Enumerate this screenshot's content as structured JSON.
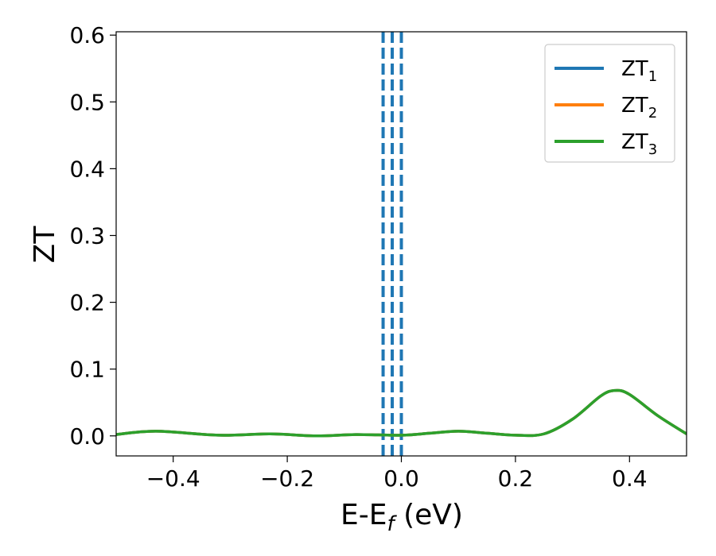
{
  "chart_data": {
    "type": "line",
    "xlabel": "E-E",
    "xlabel_sub": "f",
    "xlabel_unit": " (eV)",
    "ylabel": "ZT",
    "xlim": [
      -0.5,
      0.5
    ],
    "ylim": [
      -0.03,
      0.605
    ],
    "x_ticks": [
      -0.4,
      -0.2,
      0.0,
      0.2,
      0.4
    ],
    "x_tick_labels": [
      "−0.4",
      "−0.2",
      "0.0",
      "0.2",
      "0.4"
    ],
    "y_ticks": [
      0.0,
      0.1,
      0.2,
      0.3,
      0.4,
      0.5,
      0.6
    ],
    "y_tick_labels": [
      "0.0",
      "0.1",
      "0.2",
      "0.3",
      "0.4",
      "0.5",
      "0.6"
    ],
    "grid": false,
    "legend_position": "top-right",
    "series": [
      {
        "name": "ZT",
        "sub": "1",
        "color": "#1f77b4",
        "x": [
          -0.5,
          -0.43,
          -0.32,
          -0.23,
          -0.15,
          -0.08,
          0.0,
          0.05,
          0.1,
          0.15,
          0.2,
          0.25,
          0.3,
          0.35,
          0.375,
          0.4,
          0.45,
          0.5
        ],
        "y": [
          0.002,
          0.007,
          0.001,
          0.003,
          0.0,
          0.002,
          0.001,
          0.004,
          0.007,
          0.004,
          0.001,
          0.003,
          0.025,
          0.06,
          0.068,
          0.062,
          0.03,
          0.003
        ]
      },
      {
        "name": "ZT",
        "sub": "2",
        "color": "#ff7f0e",
        "x": [
          -0.5,
          -0.43,
          -0.32,
          -0.23,
          -0.15,
          -0.08,
          0.0,
          0.05,
          0.1,
          0.15,
          0.2,
          0.25,
          0.3,
          0.35,
          0.375,
          0.4,
          0.45,
          0.5
        ],
        "y": [
          0.002,
          0.007,
          0.001,
          0.003,
          0.0,
          0.002,
          0.001,
          0.004,
          0.007,
          0.004,
          0.001,
          0.003,
          0.025,
          0.06,
          0.068,
          0.062,
          0.03,
          0.003
        ]
      },
      {
        "name": "ZT",
        "sub": "3",
        "color": "#2ca02c",
        "x": [
          -0.5,
          -0.43,
          -0.32,
          -0.23,
          -0.15,
          -0.08,
          0.0,
          0.05,
          0.1,
          0.15,
          0.2,
          0.25,
          0.3,
          0.35,
          0.375,
          0.4,
          0.45,
          0.5
        ],
        "y": [
          0.002,
          0.007,
          0.001,
          0.003,
          0.0,
          0.002,
          0.001,
          0.004,
          0.007,
          0.004,
          0.001,
          0.003,
          0.025,
          0.06,
          0.068,
          0.062,
          0.03,
          0.003
        ]
      }
    ],
    "vertical_lines": [
      {
        "x": -0.032,
        "style": "dashed",
        "color": "#1f77b4"
      },
      {
        "x": -0.016,
        "style": "dashed",
        "color": "#1f77b4"
      },
      {
        "x": 0.0,
        "style": "dashed",
        "color": "#000000"
      },
      {
        "x": 0.0,
        "style": "dashed",
        "color": "#1f77b4"
      }
    ]
  }
}
